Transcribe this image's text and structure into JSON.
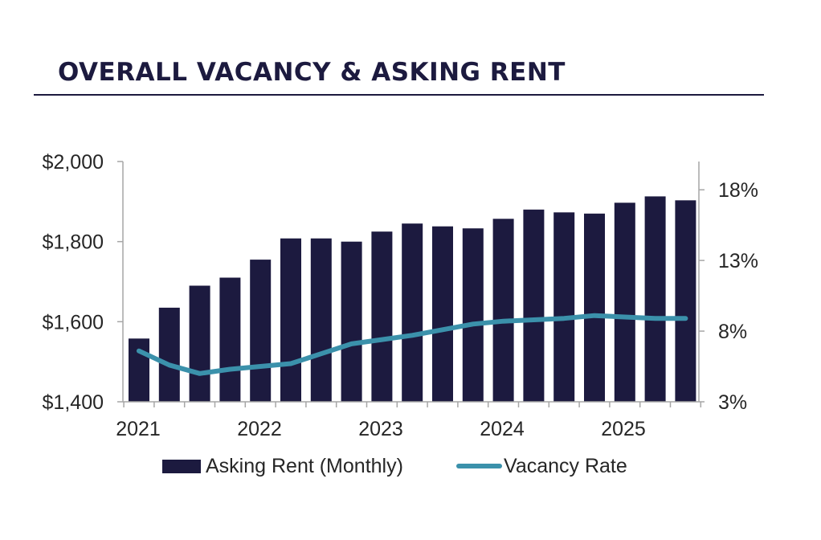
{
  "title": "OVERALL VACANCY & ASKING RENT",
  "chart_data": {
    "type": "bar",
    "x_ticks": [
      "2021",
      "2022",
      "2023",
      "2024",
      "2025"
    ],
    "series": [
      {
        "name": "Asking Rent (Monthly)",
        "type": "bar",
        "axis": "left",
        "color": "#1c1a3f",
        "values": [
          1558,
          1635,
          1690,
          1710,
          1755,
          1808,
          1808,
          1800,
          1825,
          1845,
          1838,
          1833,
          1857,
          1880,
          1873,
          1870,
          1897,
          1913,
          1903
        ]
      },
      {
        "name": "Vacancy Rate",
        "type": "line",
        "axis": "right",
        "color": "#3b91ab",
        "values": [
          6.6,
          5.6,
          5.0,
          5.3,
          5.5,
          5.7,
          6.4,
          7.1,
          7.4,
          7.7,
          8.1,
          8.5,
          8.7,
          8.8,
          8.9,
          9.1,
          9.0,
          8.9,
          8.9
        ]
      }
    ],
    "y_left": {
      "ticks": [
        "$1,400",
        "$1,600",
        "$1,800",
        "$2,000"
      ],
      "min": 1400,
      "max": 2000
    },
    "y_right": {
      "ticks": [
        "3%",
        "8%",
        "13%",
        "18%"
      ],
      "min": 3,
      "max": 20
    },
    "legend": {
      "position": "bottom"
    },
    "grid": false
  }
}
